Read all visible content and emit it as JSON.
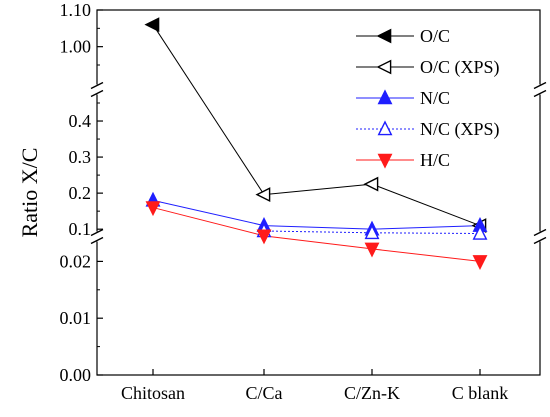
{
  "chart_data": {
    "type": "line",
    "ylabel": "Ratio X/C",
    "xlabel": "",
    "categories": [
      "Chitosan",
      "C/Ca",
      "C/Zn-K",
      "C blank"
    ],
    "axis_breaks": [
      {
        "lower": 0.025,
        "upper": 0.07
      },
      {
        "lower": 0.45,
        "upper": 0.92
      }
    ],
    "y_segments": [
      {
        "range": [
          0.0,
          0.025
        ],
        "ticks": [
          "0.00",
          "0.01",
          "0.02"
        ],
        "tick_values": [
          0.0,
          0.01,
          0.02
        ]
      },
      {
        "range": [
          0.07,
          0.45
        ],
        "ticks": [
          "0.1",
          "0.2",
          "0.3",
          "0.4"
        ],
        "tick_values": [
          0.1,
          0.2,
          0.3,
          0.4
        ]
      },
      {
        "range": [
          0.92,
          1.1
        ],
        "ticks": [
          "1.00",
          "1.10"
        ],
        "tick_values": [
          1.0,
          1.1
        ]
      }
    ],
    "series": [
      {
        "name": "O/C",
        "marker": "triangle-left",
        "fill": "solid",
        "color": "#000000",
        "line": "solid",
        "values": [
          1.06,
          null,
          null,
          null
        ]
      },
      {
        "name": "O/C (XPS)",
        "marker": "triangle-left",
        "fill": "open",
        "color": "#000000",
        "line": "solid",
        "values": [
          null,
          0.196,
          0.225,
          0.11
        ]
      },
      {
        "name": "N/C",
        "marker": "triangle-up",
        "fill": "solid",
        "color": "#1f1fff",
        "line": "solid",
        "values": [
          0.18,
          0.11,
          0.1,
          0.11
        ]
      },
      {
        "name": "N/C (XPS)",
        "marker": "triangle-up",
        "fill": "open",
        "color": "#1f1fff",
        "line": "dotted",
        "values": [
          null,
          0.095,
          0.09,
          0.088
        ]
      },
      {
        "name": "H/C",
        "marker": "triangle-down",
        "fill": "solid",
        "color": "#ff1a1a",
        "line": "solid",
        "values": [
          0.16,
          0.0245,
          0.0222,
          0.02
        ]
      }
    ],
    "connectors": [
      {
        "color": "#000000",
        "from": {
          "series": "O/C",
          "index": 0
        },
        "to": {
          "series": "O/C (XPS)",
          "index": 1
        }
      }
    ],
    "legend_position": "top-right",
    "grid": false
  }
}
